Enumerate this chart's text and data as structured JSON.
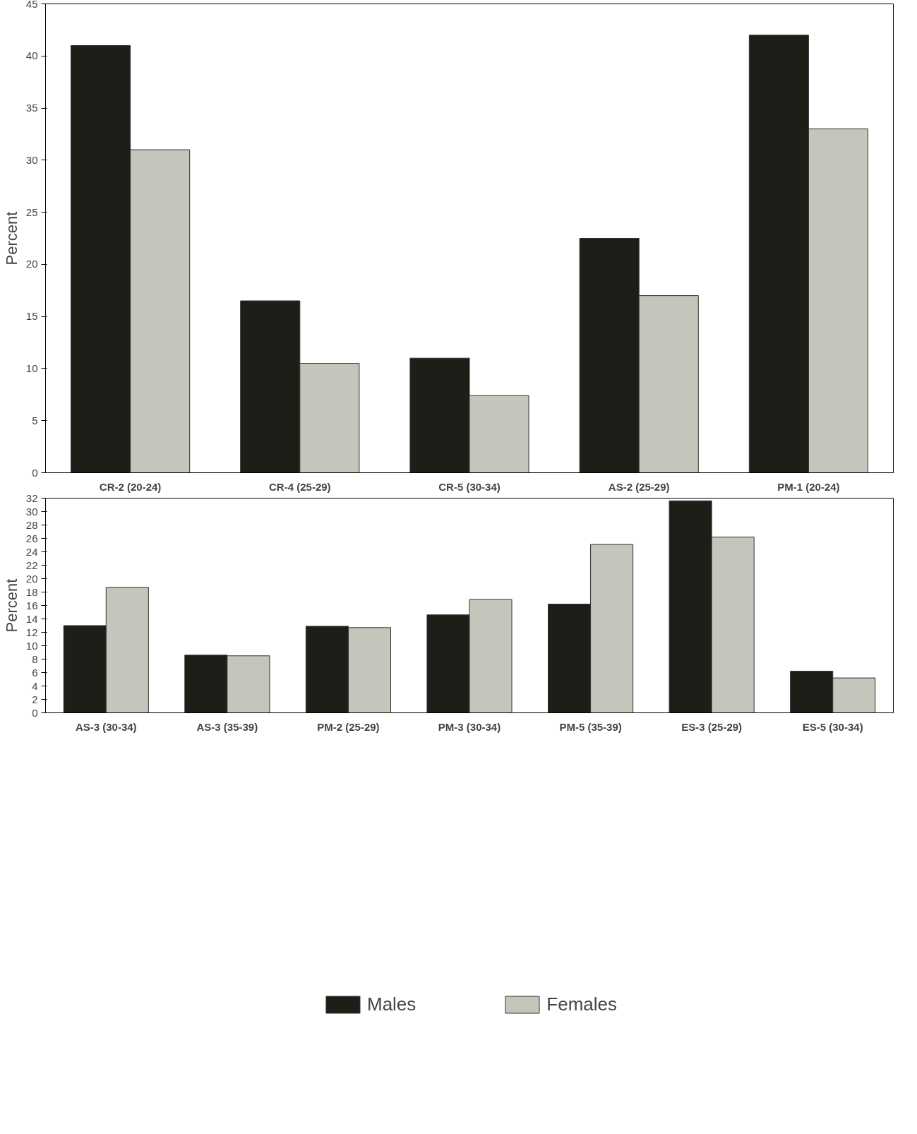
{
  "chart_data": [
    {
      "type": "bar",
      "ylabel": "Percent",
      "categories": [
        "CR-2 (20-24)",
        "CR-4 (25-29)",
        "CR-5 (30-34)",
        "AS-2 (25-29)",
        "PM-1 (20-24)"
      ],
      "ylim": [
        0,
        45
      ],
      "yticks": [
        0,
        5,
        10,
        15,
        20,
        25,
        30,
        35,
        40,
        45
      ],
      "grid": false,
      "series": [
        {
          "color": "#1e1e18",
          "values": [
            41,
            16.5,
            11,
            22.5,
            42
          ]
        },
        {
          "color": "#c4c6bc",
          "values": [
            31,
            10.5,
            7.4,
            17,
            33
          ]
        }
      ]
    },
    {
      "type": "bar",
      "ylabel": "Percent",
      "categories": [
        "AS-3 (30-34)",
        "AS-3 (35-39)",
        "PM-2 (25-29)",
        "PM-3 (30-34)",
        "PM-5 (35-39)",
        "ES-3 (25-29)",
        "ES-5 (30-34)"
      ],
      "ylim": [
        0,
        32
      ],
      "yticks": [
        0,
        2,
        4,
        6,
        8,
        10,
        12,
        14,
        16,
        18,
        20,
        22,
        24,
        26,
        28,
        30,
        32
      ],
      "grid": false,
      "legend": "bottom",
      "series": [
        {
          "name": "Males",
          "color": "#1e1e18",
          "values": [
            13,
            8.6,
            12.9,
            14.6,
            16.2,
            31.6,
            6.2
          ]
        },
        {
          "name": "Females",
          "color": "#c4c6bc",
          "values": [
            18.7,
            8.5,
            12.7,
            16.9,
            25.1,
            26.2,
            5.2
          ]
        }
      ]
    }
  ]
}
